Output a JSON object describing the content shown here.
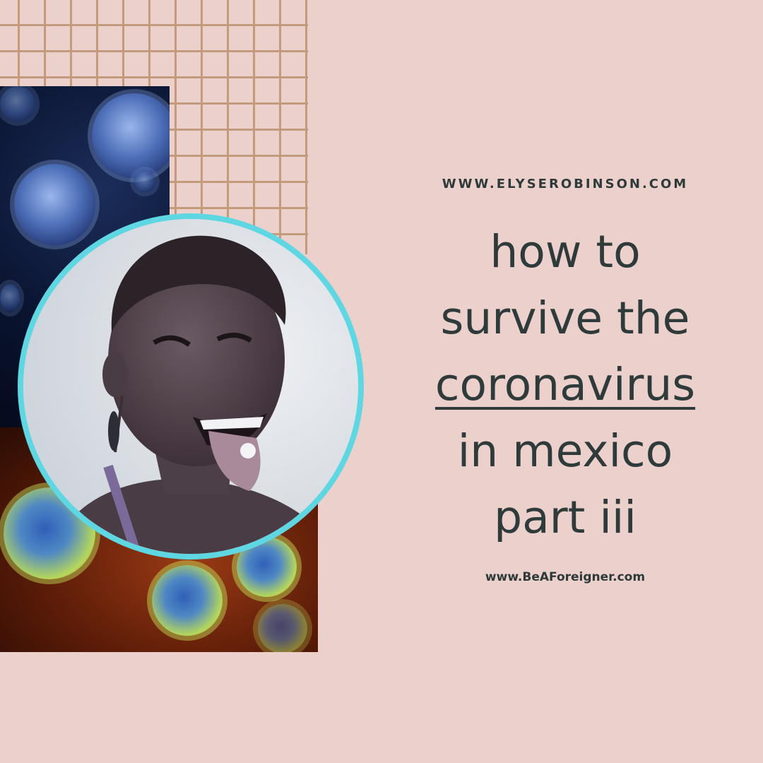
{
  "colors": {
    "background": "#ecd0cc",
    "grid": "#c49a7c",
    "ring": "#5fd7e2",
    "text": "#2f3b3a"
  },
  "header": {
    "site": "WWW.ELYSEROBINSON.COM"
  },
  "title": {
    "line1": "how to",
    "line2": "survive the",
    "line3": "coronavirus",
    "line4": "in mexico",
    "line5": "part iii"
  },
  "footer": {
    "site": "www.BeAForeigner.com"
  },
  "images": {
    "top_panel": "blue-virus-photo",
    "bottom_panel": "red-green-virus-photo",
    "portrait": "woman-smiling-portrait"
  }
}
